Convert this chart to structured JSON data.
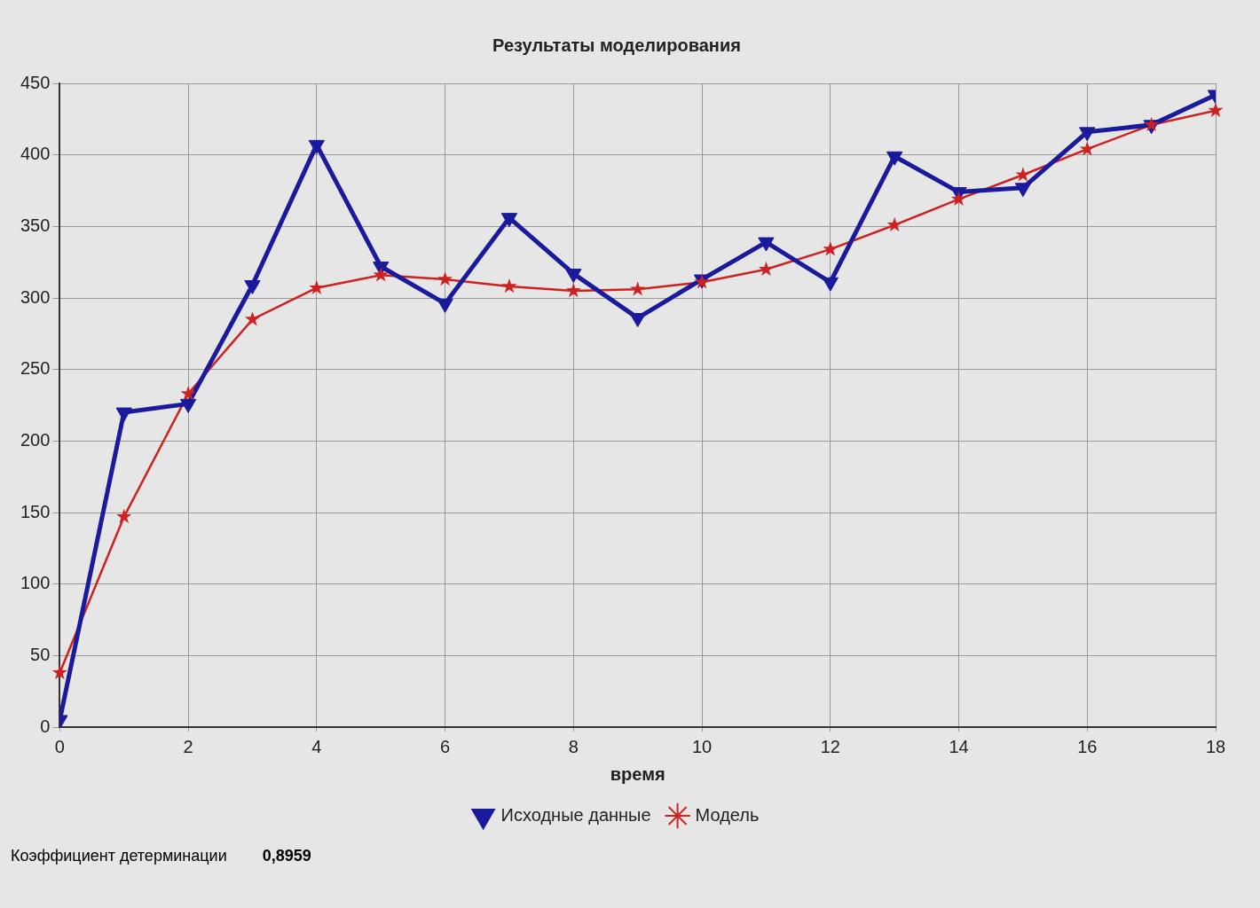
{
  "chart_data": {
    "type": "line",
    "title": "Результаты моделирования",
    "xlabel": "время",
    "x": [
      0,
      1,
      2,
      3,
      4,
      5,
      6,
      7,
      8,
      9,
      10,
      11,
      12,
      13,
      14,
      15,
      16,
      17,
      18
    ],
    "series": [
      {
        "name": "Исходные данные",
        "color": "#1a1a9c",
        "marker": "triangle",
        "values": [
          5,
          220,
          226,
          309,
          407,
          322,
          296,
          356,
          317,
          286,
          313,
          339,
          311,
          399,
          374,
          377,
          416,
          421,
          442
        ]
      },
      {
        "name": "Модель",
        "color": "#cc2222",
        "marker": "star",
        "values": [
          38,
          147,
          233,
          285,
          307,
          316,
          313,
          308,
          305,
          306,
          311,
          320,
          334,
          351,
          369,
          386,
          404,
          421,
          431
        ]
      }
    ],
    "xlim": [
      0,
      18
    ],
    "xticks": [
      0,
      2,
      4,
      6,
      8,
      10,
      12,
      14,
      16,
      18
    ],
    "ylim": [
      0,
      450
    ],
    "yticks": [
      0,
      50,
      100,
      150,
      200,
      250,
      300,
      350,
      400,
      450
    ],
    "grid": true,
    "line_style": "solid",
    "legend": "bottom",
    "annotations": [
      "Коэффициент детерминации",
      "0,8959"
    ]
  }
}
